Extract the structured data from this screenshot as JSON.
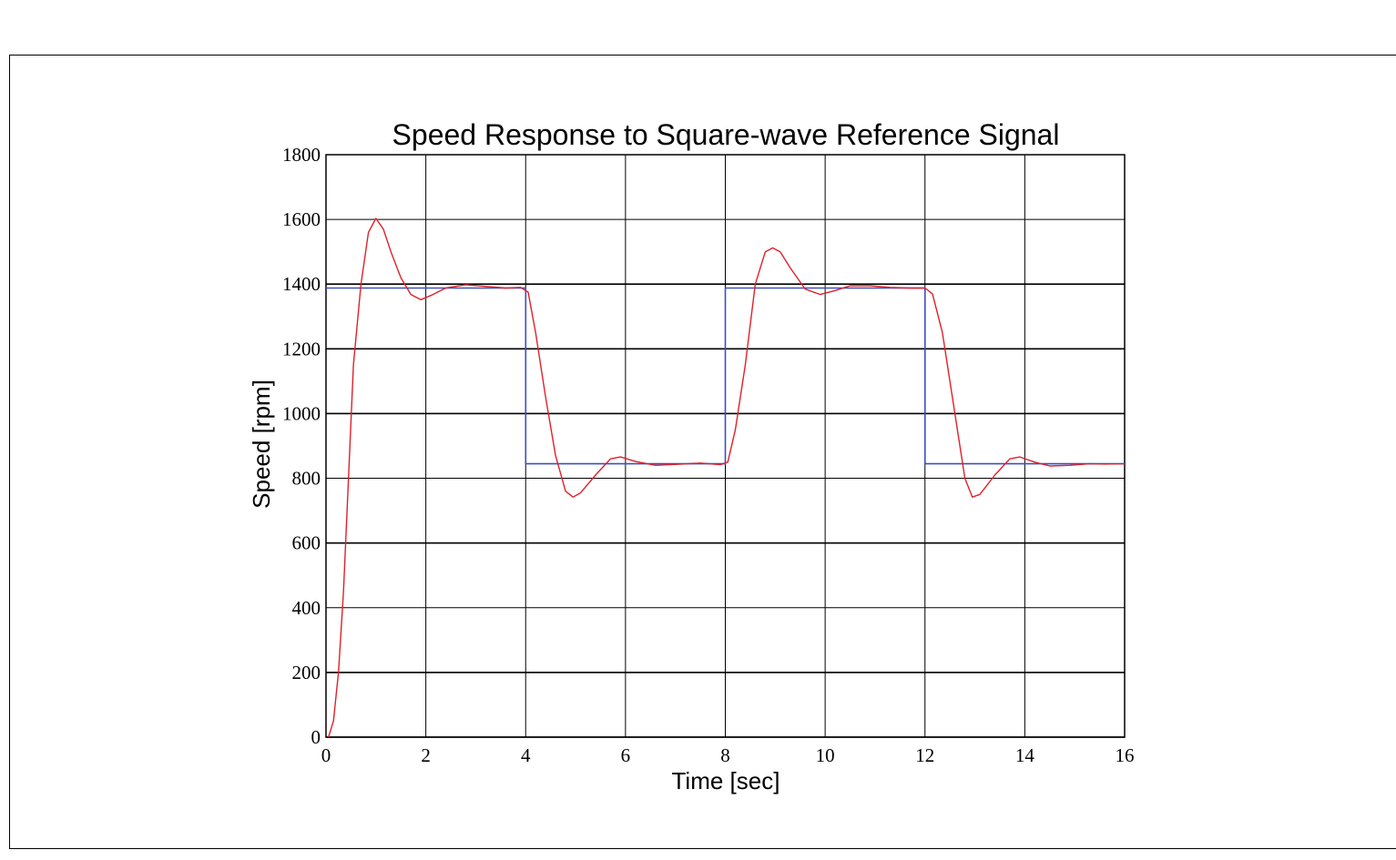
{
  "chart_data": {
    "type": "line",
    "title": "Speed Response to Square-wave Reference Signal",
    "xlabel": "Time [sec]",
    "ylabel": "Speed [rpm]",
    "xlim": [
      0,
      16
    ],
    "ylim": [
      0,
      1800
    ],
    "xticks": [
      0,
      2,
      4,
      6,
      8,
      10,
      12,
      14,
      16
    ],
    "yticks": [
      0,
      200,
      400,
      600,
      800,
      1000,
      1200,
      1400,
      1600,
      1800
    ],
    "grid": true,
    "legend": "none",
    "series": [
      {
        "color": "#3a4fc4",
        "points": [
          [
            0,
            1388
          ],
          [
            4,
            1388
          ],
          [
            4,
            845
          ],
          [
            8,
            845
          ],
          [
            8,
            1388
          ],
          [
            12,
            1388
          ],
          [
            12,
            845
          ],
          [
            16,
            845
          ]
        ]
      },
      {
        "color": "#e0202a",
        "points": [
          [
            0.05,
            0
          ],
          [
            0.15,
            50
          ],
          [
            0.25,
            200
          ],
          [
            0.35,
            450
          ],
          [
            0.45,
            800
          ],
          [
            0.55,
            1150
          ],
          [
            0.7,
            1400
          ],
          [
            0.85,
            1560
          ],
          [
            1.0,
            1603
          ],
          [
            1.15,
            1570
          ],
          [
            1.3,
            1500
          ],
          [
            1.5,
            1420
          ],
          [
            1.7,
            1368
          ],
          [
            1.9,
            1352
          ],
          [
            2.1,
            1365
          ],
          [
            2.4,
            1388
          ],
          [
            2.8,
            1398
          ],
          [
            3.2,
            1393
          ],
          [
            3.6,
            1388
          ],
          [
            3.9,
            1390
          ],
          [
            4.05,
            1375
          ],
          [
            4.2,
            1250
          ],
          [
            4.4,
            1050
          ],
          [
            4.6,
            870
          ],
          [
            4.8,
            760
          ],
          [
            4.95,
            742
          ],
          [
            5.1,
            755
          ],
          [
            5.4,
            810
          ],
          [
            5.7,
            860
          ],
          [
            5.9,
            866
          ],
          [
            6.2,
            852
          ],
          [
            6.6,
            840
          ],
          [
            7.0,
            843
          ],
          [
            7.5,
            847
          ],
          [
            7.9,
            842
          ],
          [
            8.05,
            850
          ],
          [
            8.2,
            950
          ],
          [
            8.4,
            1150
          ],
          [
            8.6,
            1400
          ],
          [
            8.8,
            1500
          ],
          [
            8.95,
            1512
          ],
          [
            9.1,
            1500
          ],
          [
            9.3,
            1450
          ],
          [
            9.6,
            1385
          ],
          [
            9.9,
            1368
          ],
          [
            10.2,
            1380
          ],
          [
            10.5,
            1395
          ],
          [
            10.9,
            1395
          ],
          [
            11.3,
            1390
          ],
          [
            11.7,
            1388
          ],
          [
            12.0,
            1388
          ],
          [
            12.15,
            1370
          ],
          [
            12.35,
            1250
          ],
          [
            12.6,
            1000
          ],
          [
            12.8,
            800
          ],
          [
            12.95,
            742
          ],
          [
            13.1,
            750
          ],
          [
            13.4,
            810
          ],
          [
            13.7,
            860
          ],
          [
            13.9,
            866
          ],
          [
            14.2,
            850
          ],
          [
            14.5,
            838
          ],
          [
            14.9,
            840
          ],
          [
            15.3,
            845
          ],
          [
            15.6,
            844
          ],
          [
            16.0,
            845
          ]
        ]
      }
    ]
  }
}
